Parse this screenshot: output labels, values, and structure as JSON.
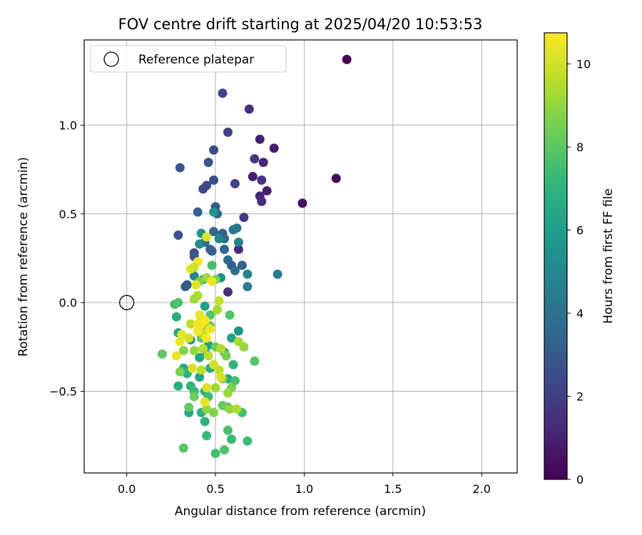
{
  "chart_data": {
    "type": "scatter",
    "title": "FOV centre drift starting at 2025/04/20 10:53:53",
    "xlabel": "Angular distance from reference (arcmin)",
    "ylabel": "Rotation from reference (arcmin)",
    "xlim": [
      -0.24,
      2.2
    ],
    "ylim": [
      -0.96,
      1.48
    ],
    "xticks": [
      0.0,
      0.5,
      1.0,
      1.5,
      2.0
    ],
    "xtick_labels": [
      "0.0",
      "0.5",
      "1.0",
      "1.5",
      "2.0"
    ],
    "yticks": [
      -0.5,
      0.0,
      0.5,
      1.0
    ],
    "ytick_labels": [
      "−0.5",
      "0.0",
      "0.5",
      "1.0"
    ],
    "grid": true,
    "legend": {
      "position": "upper-left",
      "label": "Reference platepar"
    },
    "reference_point": {
      "x": 0.0,
      "y": 0.0
    },
    "colorbar": {
      "label": "Hours from first FF file",
      "colormap": "viridis",
      "range": [
        0,
        10.75
      ],
      "ticks": [
        0,
        2,
        4,
        6,
        8,
        10
      ],
      "tick_labels": [
        "0",
        "2",
        "4",
        "6",
        "8",
        "10"
      ]
    },
    "points": [
      [
        1.24,
        1.37,
        0.0
      ],
      [
        1.18,
        0.7,
        0.2
      ],
      [
        0.99,
        0.56,
        0.5
      ],
      [
        0.83,
        0.87,
        0.8
      ],
      [
        0.79,
        0.63,
        0.9
      ],
      [
        0.75,
        0.92,
        1.0
      ],
      [
        0.77,
        0.79,
        1.1
      ],
      [
        0.71,
        0.71,
        0.9
      ],
      [
        0.75,
        0.6,
        1.2
      ],
      [
        0.76,
        0.57,
        1.3
      ],
      [
        0.69,
        1.09,
        1.6
      ],
      [
        0.72,
        0.81,
        1.9
      ],
      [
        0.76,
        0.69,
        1.7
      ],
      [
        0.66,
        0.48,
        1.8
      ],
      [
        0.63,
        0.3,
        1.3
      ],
      [
        0.57,
        0.06,
        1.5
      ],
      [
        0.54,
        1.18,
        2.2
      ],
      [
        0.57,
        0.96,
        2.0
      ],
      [
        0.49,
        0.86,
        2.5
      ],
      [
        0.46,
        0.79,
        2.9
      ],
      [
        0.3,
        0.76,
        2.8
      ],
      [
        0.49,
        0.69,
        2.6
      ],
      [
        0.61,
        0.67,
        2.2
      ],
      [
        0.45,
        0.66,
        2.4
      ],
      [
        0.43,
        0.64,
        2.3
      ],
      [
        0.5,
        0.54,
        3.0
      ],
      [
        0.4,
        0.51,
        3.4
      ],
      [
        0.51,
        0.5,
        3.5
      ],
      [
        0.29,
        0.38,
        2.8
      ],
      [
        0.54,
        0.39,
        3.3
      ],
      [
        0.49,
        0.4,
        3.6
      ],
      [
        0.55,
        0.36,
        3.8
      ],
      [
        0.44,
        0.34,
        3.5
      ],
      [
        0.47,
        0.3,
        3.6
      ],
      [
        0.55,
        0.3,
        3.5
      ],
      [
        0.48,
        0.29,
        3.2
      ],
      [
        0.38,
        0.28,
        2.6
      ],
      [
        0.38,
        0.26,
        3.0
      ],
      [
        0.57,
        0.24,
        3.9
      ],
      [
        0.59,
        0.21,
        3.1
      ],
      [
        0.65,
        0.21,
        3.3
      ],
      [
        0.61,
        0.18,
        4.0
      ],
      [
        0.34,
        0.1,
        2.9
      ],
      [
        0.33,
        0.09,
        3.1
      ],
      [
        0.85,
        0.16,
        4.6
      ],
      [
        0.68,
        0.16,
        4.8
      ],
      [
        0.68,
        0.09,
        4.5
      ],
      [
        0.62,
        0.42,
        4.1
      ],
      [
        0.6,
        0.41,
        4.3
      ],
      [
        0.63,
        0.34,
        4.8
      ],
      [
        0.42,
        0.39,
        5.4
      ],
      [
        0.52,
        0.36,
        5.0
      ],
      [
        0.49,
        0.51,
        5.5
      ],
      [
        0.41,
        0.33,
        5.1
      ],
      [
        0.38,
        0.15,
        5.0
      ],
      [
        0.53,
        0.14,
        5.4
      ],
      [
        0.43,
        0.13,
        5.0
      ],
      [
        0.44,
        -0.02,
        6.2
      ],
      [
        0.28,
        -0.08,
        6.6
      ],
      [
        0.29,
        -0.17,
        6.5
      ],
      [
        0.63,
        -0.16,
        5.5
      ],
      [
        0.59,
        -0.2,
        6.2
      ],
      [
        0.36,
        -0.21,
        5.8
      ],
      [
        0.46,
        -0.24,
        6.0
      ],
      [
        0.45,
        -0.29,
        6.3
      ],
      [
        0.55,
        -0.28,
        6.7
      ],
      [
        0.41,
        -0.31,
        6.2
      ],
      [
        0.6,
        -0.35,
        7.0
      ],
      [
        0.47,
        -0.37,
        6.5
      ],
      [
        0.32,
        -0.37,
        6.4
      ],
      [
        0.34,
        -0.4,
        6.8
      ],
      [
        0.41,
        -0.42,
        6.2
      ],
      [
        0.57,
        -0.43,
        6.4
      ],
      [
        0.29,
        -0.47,
        6.7
      ],
      [
        0.36,
        -0.47,
        7.0
      ],
      [
        0.38,
        -0.5,
        7.2
      ],
      [
        0.44,
        -0.5,
        6.8
      ],
      [
        0.46,
        -0.53,
        7.4
      ],
      [
        0.61,
        -0.44,
        7.6
      ],
      [
        0.57,
        -0.59,
        7.4
      ],
      [
        0.35,
        -0.62,
        6.5
      ],
      [
        0.42,
        -0.62,
        6.8
      ],
      [
        0.44,
        -0.67,
        6.9
      ],
      [
        0.45,
        -0.75,
        7.2
      ],
      [
        0.57,
        -0.72,
        7.6
      ],
      [
        0.59,
        -0.77,
        7.2
      ],
      [
        0.68,
        -0.78,
        7.3
      ],
      [
        0.55,
        -0.83,
        7.7
      ],
      [
        0.5,
        -0.85,
        7.5
      ],
      [
        0.32,
        -0.82,
        7.9
      ],
      [
        0.2,
        -0.29,
        8.0
      ],
      [
        0.27,
        -0.01,
        7.6
      ],
      [
        0.29,
        0.0,
        7.7
      ],
      [
        0.48,
        0.21,
        7.6
      ],
      [
        0.58,
        -0.07,
        7.8
      ],
      [
        0.47,
        -0.07,
        7.9
      ],
      [
        0.42,
        -0.2,
        8.0
      ],
      [
        0.65,
        -0.62,
        7.5
      ],
      [
        0.72,
        -0.33,
        7.8
      ],
      [
        0.66,
        -0.25,
        9.0
      ],
      [
        0.63,
        -0.22,
        9.3
      ],
      [
        0.56,
        -0.3,
        8.5
      ],
      [
        0.5,
        -0.25,
        8.3
      ],
      [
        0.35,
        -0.59,
        8.1
      ],
      [
        0.38,
        -0.53,
        8.3
      ],
      [
        0.3,
        -0.39,
        8.6
      ],
      [
        0.47,
        -0.13,
        8.4
      ],
      [
        0.41,
        0.12,
        8.5
      ],
      [
        0.5,
        0.13,
        8.4
      ],
      [
        0.32,
        -0.27,
        8.7
      ],
      [
        0.38,
        -0.27,
        9.0
      ],
      [
        0.54,
        -0.58,
        8.2
      ],
      [
        0.59,
        -0.48,
        8.5
      ],
      [
        0.58,
        -0.6,
        8.9
      ],
      [
        0.45,
        -0.6,
        9.0
      ],
      [
        0.49,
        -0.62,
        8.7
      ],
      [
        0.57,
        -0.51,
        9.1
      ],
      [
        0.62,
        -0.6,
        9.4
      ],
      [
        0.54,
        -0.43,
        8.8
      ],
      [
        0.5,
        -0.48,
        9.2
      ],
      [
        0.42,
        -0.38,
        9.6
      ],
      [
        0.46,
        -0.3,
        9.6
      ],
      [
        0.53,
        -0.26,
        9.5
      ],
      [
        0.44,
        -0.13,
        9.3
      ],
      [
        0.51,
        -0.04,
        9.3
      ],
      [
        0.4,
        0.04,
        9.5
      ],
      [
        0.38,
        0.02,
        9.2
      ],
      [
        0.45,
        0.14,
        9.1
      ],
      [
        0.52,
        0.01,
        9.8
      ],
      [
        0.36,
        -0.12,
        9.7
      ],
      [
        0.43,
        -0.18,
        9.8
      ],
      [
        0.43,
        -0.26,
        9.5
      ],
      [
        0.52,
        -0.38,
        9.7
      ],
      [
        0.49,
        -0.35,
        10.0
      ],
      [
        0.53,
        -0.42,
        10.1
      ],
      [
        0.45,
        -0.48,
        10.2
      ],
      [
        0.44,
        -0.56,
        10.3
      ],
      [
        0.28,
        -0.3,
        10.4
      ],
      [
        0.3,
        -0.22,
        10.5
      ],
      [
        0.31,
        -0.18,
        10.3
      ],
      [
        0.35,
        -0.2,
        10.1
      ],
      [
        0.37,
        -0.37,
        10.2
      ],
      [
        0.42,
        -0.12,
        10.6
      ],
      [
        0.44,
        -0.1,
        10.7
      ],
      [
        0.48,
        0.12,
        10.5
      ],
      [
        0.39,
        0.1,
        10.3
      ],
      [
        0.36,
        0.19,
        10.4
      ],
      [
        0.4,
        0.23,
        10.6
      ],
      [
        0.45,
        0.37,
        10.2
      ],
      [
        0.38,
        0.2,
        10.0
      ],
      [
        0.41,
        -0.07,
        10.4
      ],
      [
        0.47,
        -0.15,
        10.5
      ],
      [
        0.4,
        -0.16,
        10.6
      ],
      [
        0.45,
        -0.2,
        10.7
      ],
      [
        0.4,
        -0.12,
        10.5
      ]
    ],
    "colors": {
      "viridis": [
        "#440154",
        "#482878",
        "#3e4989",
        "#31688e",
        "#26828e",
        "#1f9e89",
        "#35b779",
        "#6ece58",
        "#b5de2b",
        "#fde725"
      ],
      "grid": "#b0b0b0",
      "axes": "#000000"
    }
  }
}
